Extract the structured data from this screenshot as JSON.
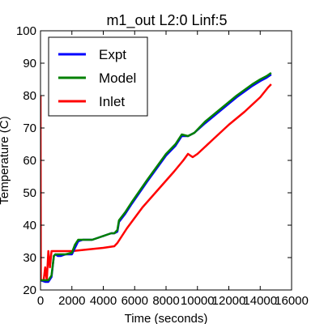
{
  "chart_data": {
    "type": "line",
    "title": "m1_out L2:0 Linf:5",
    "xlabel": "Time (seconds)",
    "ylabel": "Temperature (C)",
    "xlim": [
      0,
      16000
    ],
    "ylim": [
      20,
      100
    ],
    "x_ticks": [
      "0",
      "2000",
      "4000",
      "6000",
      "8000",
      "10000",
      "12000",
      "14000",
      "16000"
    ],
    "y_ticks": [
      "20",
      "30",
      "40",
      "50",
      "60",
      "70",
      "80",
      "90",
      "100"
    ],
    "grid": false,
    "legend_position": "top-left",
    "series": [
      {
        "name": "Expt",
        "color": "#0000ff",
        "points": [
          [
            0,
            23
          ],
          [
            300,
            22.5
          ],
          [
            500,
            22.5
          ],
          [
            700,
            24
          ],
          [
            850,
            30.5
          ],
          [
            950,
            31
          ],
          [
            1100,
            30.5
          ],
          [
            1300,
            30.5
          ],
          [
            1600,
            31
          ],
          [
            2000,
            31
          ],
          [
            2200,
            33
          ],
          [
            2400,
            35
          ],
          [
            2700,
            35.5
          ],
          [
            3000,
            35.5
          ],
          [
            3300,
            35.5
          ],
          [
            3600,
            36
          ],
          [
            3900,
            36.5
          ],
          [
            4200,
            37
          ],
          [
            4500,
            37.5
          ],
          [
            4700,
            37.5
          ],
          [
            4900,
            38
          ],
          [
            5000,
            41
          ],
          [
            5400,
            43.5
          ],
          [
            5800,
            46.5
          ],
          [
            6300,
            50
          ],
          [
            6800,
            53.5
          ],
          [
            7400,
            57.5
          ],
          [
            8000,
            61.5
          ],
          [
            8600,
            64.5
          ],
          [
            9000,
            67.5
          ],
          [
            9400,
            67.5
          ],
          [
            9800,
            68.5
          ],
          [
            10500,
            71.5
          ],
          [
            11500,
            75.5
          ],
          [
            12500,
            79.5
          ],
          [
            13500,
            83
          ],
          [
            14000,
            84.5
          ],
          [
            14400,
            85.5
          ],
          [
            14700,
            86.5
          ]
        ]
      },
      {
        "name": "Model",
        "color": "#008000",
        "points": [
          [
            0,
            23
          ],
          [
            300,
            23
          ],
          [
            500,
            23
          ],
          [
            700,
            24.5
          ],
          [
            850,
            30.5
          ],
          [
            950,
            31
          ],
          [
            1100,
            31
          ],
          [
            1300,
            31
          ],
          [
            1600,
            31
          ],
          [
            2000,
            31.5
          ],
          [
            2200,
            34
          ],
          [
            2400,
            35.5
          ],
          [
            2700,
            35.5
          ],
          [
            3000,
            35.5
          ],
          [
            3300,
            35.5
          ],
          [
            3600,
            36
          ],
          [
            3900,
            36.5
          ],
          [
            4200,
            37
          ],
          [
            4500,
            37.5
          ],
          [
            4700,
            37.5
          ],
          [
            4900,
            38.5
          ],
          [
            5000,
            41.5
          ],
          [
            5400,
            44
          ],
          [
            5800,
            47
          ],
          [
            6300,
            50.5
          ],
          [
            6800,
            54
          ],
          [
            7400,
            58
          ],
          [
            8000,
            62
          ],
          [
            8600,
            65
          ],
          [
            9000,
            68
          ],
          [
            9400,
            67.5
          ],
          [
            9800,
            68.5
          ],
          [
            10500,
            72
          ],
          [
            11500,
            76
          ],
          [
            12500,
            80
          ],
          [
            13500,
            83.5
          ],
          [
            14000,
            85
          ],
          [
            14400,
            86
          ],
          [
            14700,
            87
          ]
        ]
      },
      {
        "name": "Inlet",
        "color": "#ff0000",
        "points": [
          [
            0,
            80
          ],
          [
            20,
            23
          ],
          [
            200,
            23
          ],
          [
            300,
            27
          ],
          [
            400,
            23
          ],
          [
            500,
            32
          ],
          [
            600,
            27
          ],
          [
            700,
            32
          ],
          [
            1000,
            32
          ],
          [
            2000,
            32
          ],
          [
            3000,
            32.5
          ],
          [
            4000,
            33
          ],
          [
            4700,
            33.5
          ],
          [
            4900,
            34.5
          ],
          [
            5500,
            39
          ],
          [
            6500,
            45.5
          ],
          [
            7500,
            51
          ],
          [
            8500,
            56.5
          ],
          [
            9100,
            60
          ],
          [
            9400,
            62
          ],
          [
            9700,
            61
          ],
          [
            10000,
            62
          ],
          [
            11000,
            66.5
          ],
          [
            12000,
            71
          ],
          [
            13000,
            75
          ],
          [
            14000,
            79.5
          ],
          [
            14500,
            82.5
          ],
          [
            14700,
            83.5
          ]
        ]
      }
    ]
  }
}
